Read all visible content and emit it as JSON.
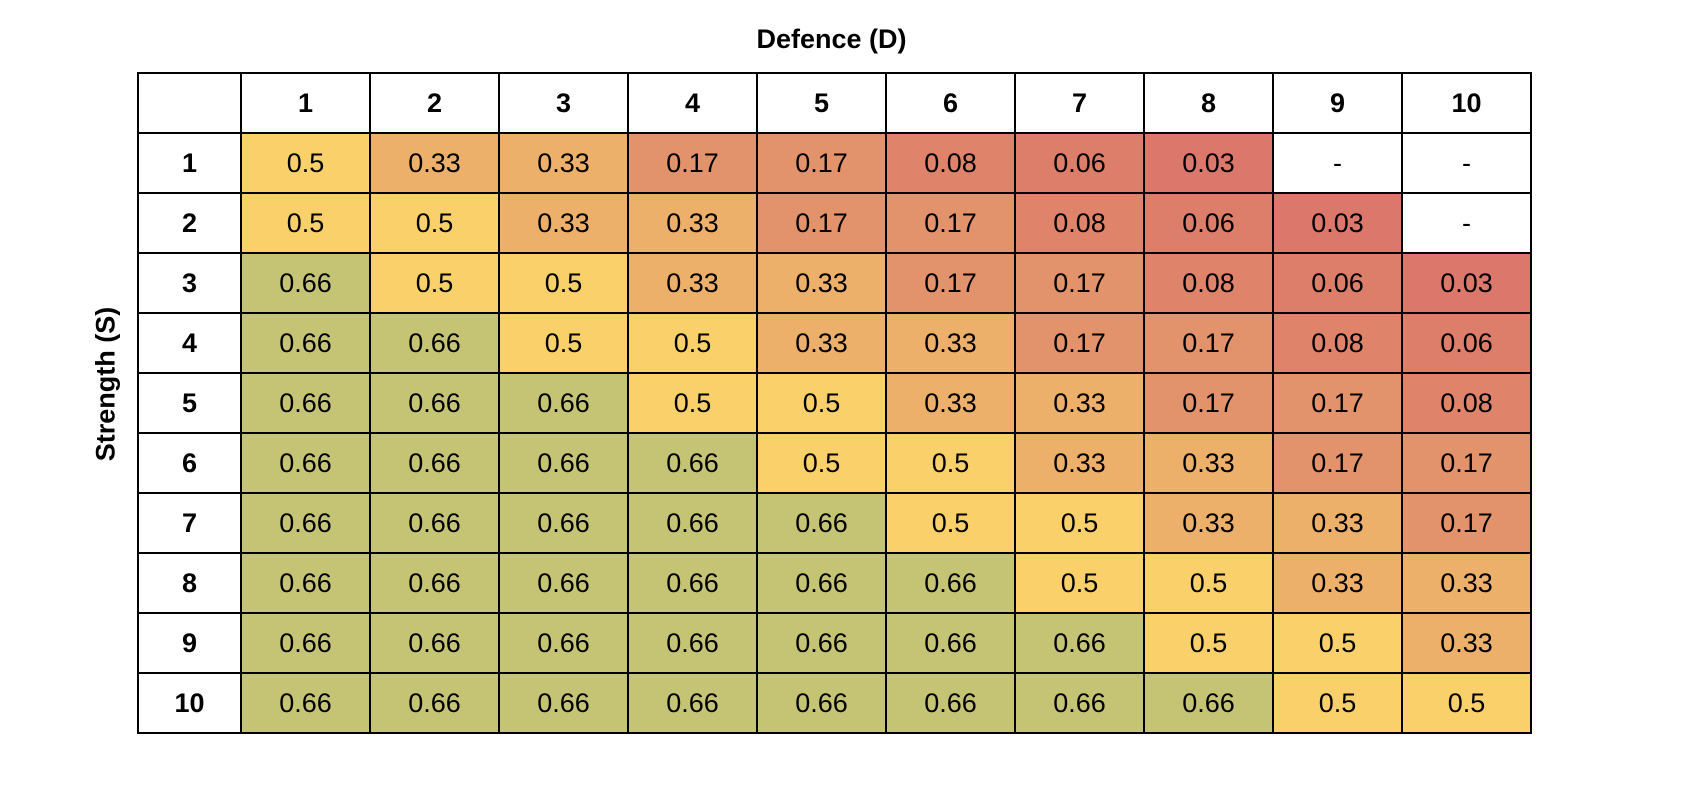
{
  "chart_data": {
    "type": "heatmap",
    "title": "Defence (D)",
    "xlabel": "Defence (D)",
    "ylabel": "Strength (S)",
    "x_categories": [
      "1",
      "2",
      "3",
      "4",
      "5",
      "6",
      "7",
      "8",
      "9",
      "10"
    ],
    "y_categories": [
      "1",
      "2",
      "3",
      "4",
      "5",
      "6",
      "7",
      "8",
      "9",
      "10"
    ],
    "values": [
      [
        "0.5",
        "0.33",
        "0.33",
        "0.17",
        "0.17",
        "0.08",
        "0.06",
        "0.03",
        "-",
        "-"
      ],
      [
        "0.5",
        "0.5",
        "0.33",
        "0.33",
        "0.17",
        "0.17",
        "0.08",
        "0.06",
        "0.03",
        "-"
      ],
      [
        "0.66",
        "0.5",
        "0.5",
        "0.33",
        "0.33",
        "0.17",
        "0.17",
        "0.08",
        "0.06",
        "0.03"
      ],
      [
        "0.66",
        "0.66",
        "0.5",
        "0.5",
        "0.33",
        "0.33",
        "0.17",
        "0.17",
        "0.08",
        "0.06"
      ],
      [
        "0.66",
        "0.66",
        "0.66",
        "0.5",
        "0.5",
        "0.33",
        "0.33",
        "0.17",
        "0.17",
        "0.08"
      ],
      [
        "0.66",
        "0.66",
        "0.66",
        "0.66",
        "0.5",
        "0.5",
        "0.33",
        "0.33",
        "0.17",
        "0.17"
      ],
      [
        "0.66",
        "0.66",
        "0.66",
        "0.66",
        "0.66",
        "0.5",
        "0.5",
        "0.33",
        "0.33",
        "0.17"
      ],
      [
        "0.66",
        "0.66",
        "0.66",
        "0.66",
        "0.66",
        "0.66",
        "0.5",
        "0.5",
        "0.33",
        "0.33"
      ],
      [
        "0.66",
        "0.66",
        "0.66",
        "0.66",
        "0.66",
        "0.66",
        "0.66",
        "0.5",
        "0.5",
        "0.33"
      ],
      [
        "0.66",
        "0.66",
        "0.66",
        "0.66",
        "0.66",
        "0.66",
        "0.66",
        "0.66",
        "0.5",
        "0.5"
      ]
    ],
    "colors": {
      "0.66": "#c4c474",
      "0.5": "#fad06b",
      "0.33": "#ecb06b",
      "0.17": "#e3936b",
      "0.08": "#df836b",
      "0.06": "#dd7e6b",
      "0.03": "#dc786b",
      "-": "#ffffff"
    }
  }
}
